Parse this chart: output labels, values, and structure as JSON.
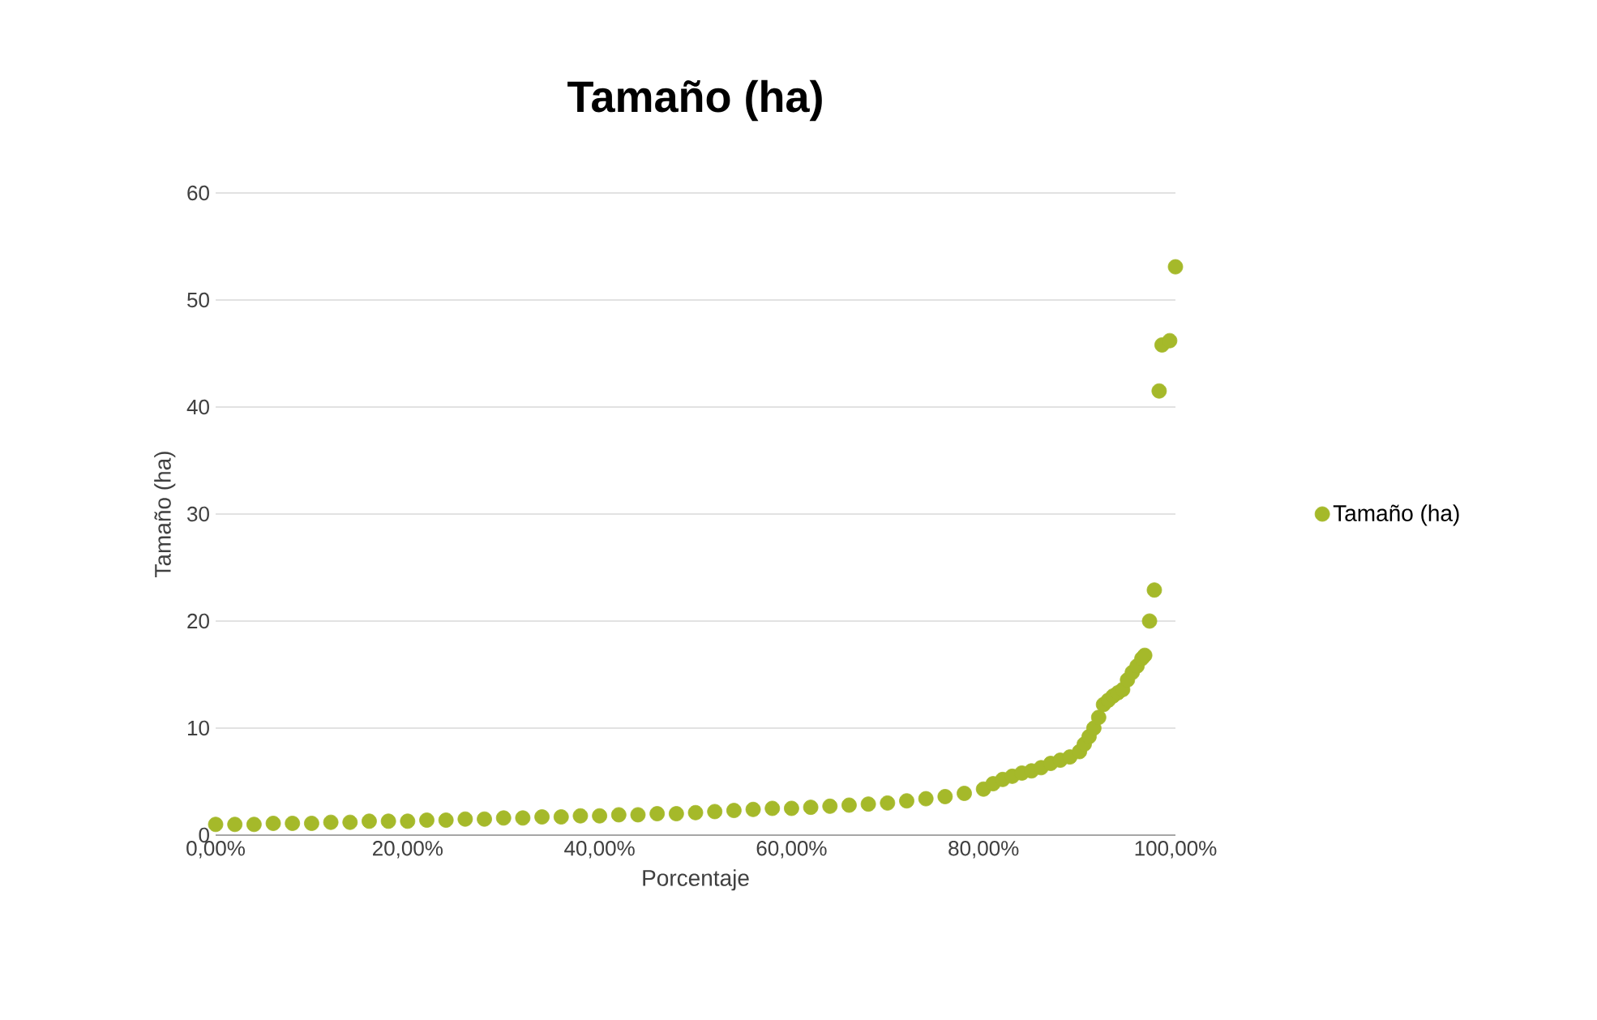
{
  "chart_data": {
    "type": "scatter",
    "title": "Tamaño (ha)",
    "xlabel": "Porcentaje",
    "ylabel": "Tamaño (ha)",
    "xlim": [
      0,
      100
    ],
    "ylim": [
      0,
      60
    ],
    "xticks": [
      {
        "value": 0,
        "label": "0,00%"
      },
      {
        "value": 20,
        "label": "20,00%"
      },
      {
        "value": 40,
        "label": "40,00%"
      },
      {
        "value": 60,
        "label": "60,00%"
      },
      {
        "value": 80,
        "label": "80,00%"
      },
      {
        "value": 100,
        "label": "100,00%"
      }
    ],
    "yticks": [
      0,
      10,
      20,
      30,
      40,
      50,
      60
    ],
    "grid": "y",
    "legend": "right",
    "marker": "circle",
    "series": [
      {
        "name": "Tamaño (ha)",
        "color": "#a5b92a",
        "x": [
          0,
          2,
          4,
          6,
          8,
          10,
          12,
          14,
          16,
          18,
          20,
          22,
          24,
          26,
          28,
          30,
          32,
          34,
          36,
          38,
          40,
          42,
          44,
          46,
          48,
          50,
          52,
          54,
          56,
          58,
          60,
          62,
          64,
          66,
          68,
          70,
          72,
          74,
          76,
          78,
          80,
          81,
          82,
          83,
          84,
          85,
          86,
          87,
          88,
          89,
          90,
          90.5,
          91,
          91.5,
          92,
          92.5,
          93,
          93.5,
          94,
          94.5,
          95,
          95.5,
          96,
          96.5,
          96.8,
          97.3,
          97.8,
          98.3,
          98.6,
          99.4,
          100
        ],
        "values": [
          1.0,
          1.0,
          1.0,
          1.1,
          1.1,
          1.1,
          1.2,
          1.2,
          1.3,
          1.3,
          1.3,
          1.4,
          1.4,
          1.5,
          1.5,
          1.6,
          1.6,
          1.7,
          1.7,
          1.8,
          1.8,
          1.9,
          1.9,
          2.0,
          2.0,
          2.1,
          2.2,
          2.3,
          2.4,
          2.5,
          2.5,
          2.6,
          2.7,
          2.8,
          2.9,
          3.0,
          3.2,
          3.4,
          3.6,
          3.9,
          4.3,
          4.8,
          5.2,
          5.5,
          5.8,
          6.0,
          6.3,
          6.7,
          7.0,
          7.3,
          7.8,
          8.5,
          9.2,
          10.0,
          11.0,
          12.2,
          12.6,
          13.0,
          13.3,
          13.6,
          14.5,
          15.2,
          15.8,
          16.5,
          16.8,
          20.0,
          22.9,
          41.5,
          45.8,
          46.2,
          53.1
        ]
      }
    ]
  }
}
